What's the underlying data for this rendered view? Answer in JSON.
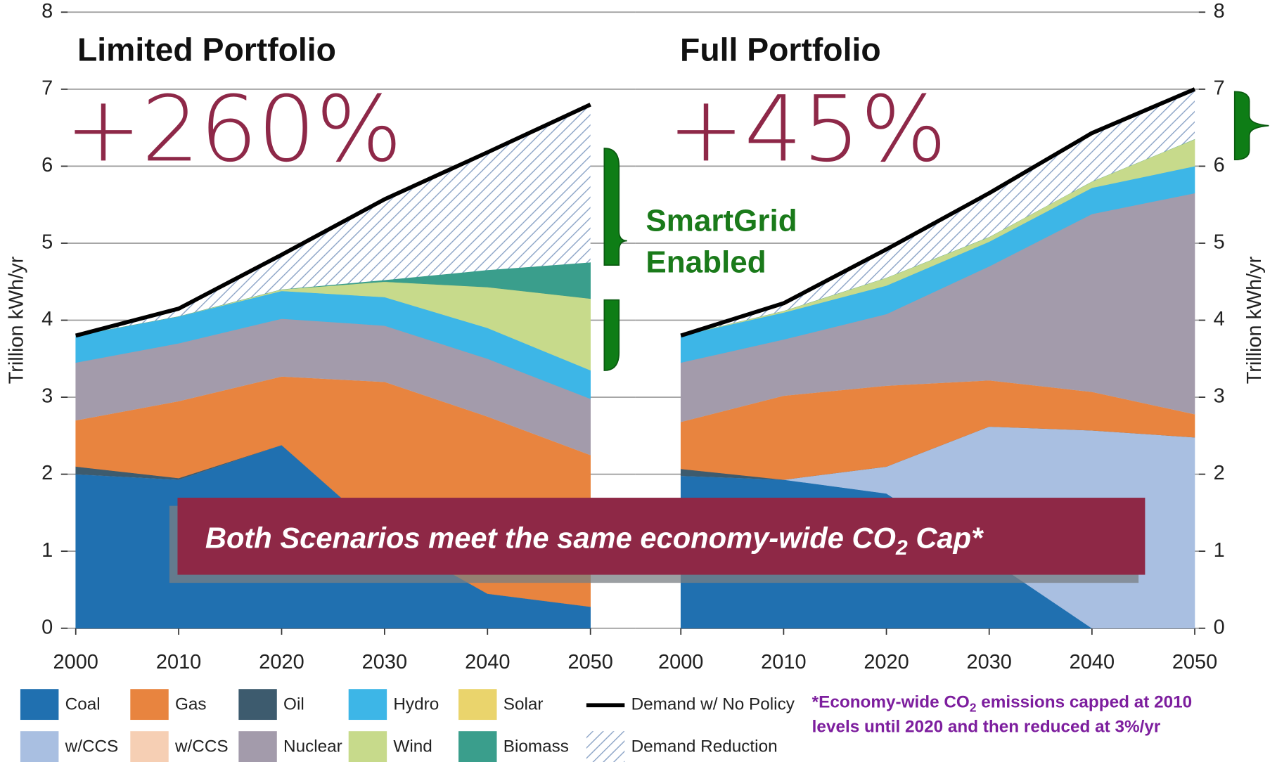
{
  "chart_data": [
    {
      "type": "area",
      "title": "Limited Portfolio",
      "annotation": "+260%",
      "stacked": true,
      "grid": true,
      "axis_side": "left",
      "ylabel": "Trillion kWh/yr",
      "x": [
        2000,
        2010,
        2020,
        2030,
        2040,
        2050
      ],
      "xlim": [
        2000,
        2050
      ],
      "xticks": [
        2000,
        2010,
        2020,
        2030,
        2040,
        2050
      ],
      "ylim": [
        0,
        8
      ],
      "yticks": [
        0,
        1,
        2,
        3,
        4,
        5,
        6,
        7,
        8
      ],
      "series": [
        {
          "name": "Coal",
          "color": "#2070b0",
          "values": [
            2.0,
            1.93,
            2.38,
            1.2,
            0.45,
            0.28
          ]
        },
        {
          "name": "w/CCS",
          "color": "#a9bfe1",
          "values": [
            0,
            0,
            0,
            0,
            0,
            0
          ]
        },
        {
          "name": "Oil",
          "color": "#3d5b6e",
          "values": [
            0.1,
            0.02,
            0,
            0,
            0,
            0
          ]
        },
        {
          "name": "Gas",
          "color": "#e8843f",
          "values": [
            0.6,
            1.0,
            0.89,
            2.0,
            2.3,
            1.97
          ]
        },
        {
          "name": "w/CCS",
          "color": "#f6cfb4",
          "values": [
            0,
            0,
            0,
            0,
            0,
            0
          ]
        },
        {
          "name": "Nuclear",
          "color": "#a39bab",
          "values": [
            0.75,
            0.75,
            0.75,
            0.73,
            0.75,
            0.73
          ]
        },
        {
          "name": "Hydro",
          "color": "#3db6e7",
          "values": [
            0.35,
            0.35,
            0.36,
            0.37,
            0.4,
            0.37
          ]
        },
        {
          "name": "Wind",
          "color": "#c7da8b",
          "values": [
            0,
            0,
            0.02,
            0.2,
            0.53,
            0.93
          ]
        },
        {
          "name": "Solar",
          "color": "#ead46c",
          "values": [
            0,
            0,
            0,
            0,
            0,
            0
          ]
        },
        {
          "name": "Biomass",
          "color": "#3a9e8c",
          "values": [
            0,
            0,
            0,
            0.02,
            0.22,
            0.47
          ]
        },
        {
          "name": "Demand Reduction",
          "color": "#8ea6c8",
          "pattern": "hatch",
          "values": [
            0,
            0.1,
            0.45,
            1.05,
            1.53,
            2.05
          ]
        }
      ],
      "demand": {
        "name": "Demand w/ No Policy",
        "color": "#000000",
        "values": [
          3.8,
          4.15,
          4.85,
          5.57,
          6.18,
          6.8
        ]
      }
    },
    {
      "type": "area",
      "title": "Full Portfolio",
      "annotation": "+45%",
      "stacked": true,
      "grid": true,
      "axis_side": "right",
      "ylabel": "Trillion kWh/yr",
      "x": [
        2000,
        2010,
        2020,
        2030,
        2040,
        2050
      ],
      "xlim": [
        2000,
        2050
      ],
      "xticks": [
        2000,
        2010,
        2020,
        2030,
        2040,
        2050
      ],
      "ylim": [
        0,
        8
      ],
      "yticks": [
        0,
        1,
        2,
        3,
        4,
        5,
        6,
        7,
        8
      ],
      "series": [
        {
          "name": "Coal",
          "color": "#2070b0",
          "values": [
            1.98,
            1.93,
            1.75,
            0.9,
            0,
            0
          ]
        },
        {
          "name": "w/CCS",
          "color": "#a9bfe1",
          "values": [
            0,
            0,
            0.35,
            1.72,
            2.57,
            2.48
          ]
        },
        {
          "name": "Oil",
          "color": "#3d5b6e",
          "values": [
            0.09,
            0,
            0,
            0,
            0,
            0
          ]
        },
        {
          "name": "Gas",
          "color": "#e8843f",
          "values": [
            0.61,
            1.09,
            1.05,
            0.6,
            0.5,
            0.3
          ]
        },
        {
          "name": "w/CCS",
          "color": "#f6cfb4",
          "values": [
            0,
            0,
            0,
            0,
            0,
            0
          ]
        },
        {
          "name": "Nuclear",
          "color": "#a39bab",
          "values": [
            0.77,
            0.73,
            0.93,
            1.48,
            2.31,
            2.87
          ]
        },
        {
          "name": "Hydro",
          "color": "#3db6e7",
          "values": [
            0.35,
            0.35,
            0.37,
            0.32,
            0.34,
            0.35
          ]
        },
        {
          "name": "Wind",
          "color": "#c7da8b",
          "values": [
            0,
            0.02,
            0.1,
            0.06,
            0.08,
            0.35
          ]
        },
        {
          "name": "Solar",
          "color": "#ead46c",
          "values": [
            0,
            0,
            0,
            0,
            0,
            0
          ]
        },
        {
          "name": "Biomass",
          "color": "#3a9e8c",
          "values": [
            0,
            0,
            0,
            0,
            0,
            0
          ]
        },
        {
          "name": "Demand Reduction",
          "color": "#8ea6c8",
          "pattern": "hatch",
          "values": [
            0,
            0.1,
            0.37,
            0.57,
            0.63,
            0.65
          ]
        }
      ],
      "demand": {
        "name": "Demand w/ No Policy",
        "color": "#000000",
        "values": [
          3.8,
          4.22,
          4.92,
          5.65,
          6.43,
          7.0
        ]
      }
    }
  ],
  "smartgrid": [
    "SmartGrid",
    "Enabled"
  ],
  "banner": [
    "Both Scenarios meet the same economy-wide CO",
    "2",
    " Cap*"
  ],
  "footnote": [
    [
      "*Economy-wide CO",
      "2",
      " emissions capped at 2010"
    ],
    [
      "levels until 2020 and then reduced at 3%/yr"
    ]
  ]
}
